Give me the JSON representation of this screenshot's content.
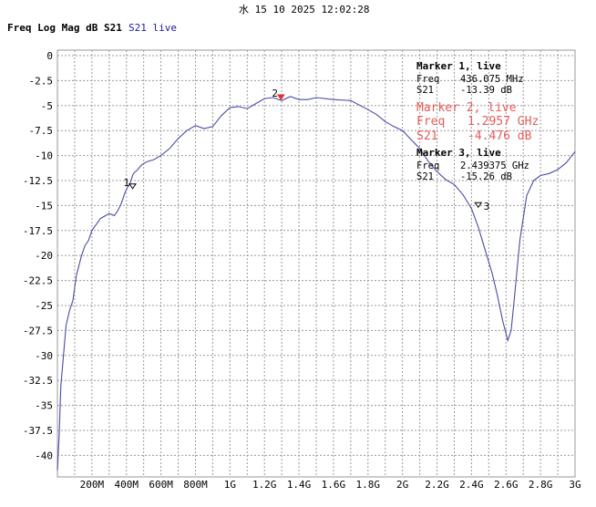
{
  "header": {
    "datetime": "水 15 10 2025 12:02:28",
    "title": "Freq Log Mag dB S21",
    "trace_label": "S21 live"
  },
  "colors": {
    "trace": "#4a4aa8",
    "marker_active": "#e03030",
    "marker_text_active": "#e85a5a",
    "grid": "#9a9a9a"
  },
  "chart_data": {
    "type": "line",
    "title": "Freq Log Mag dB S21",
    "xlabel": "",
    "ylabel": "",
    "xlim": [
      0,
      3.0
    ],
    "ylim": [
      -42,
      1
    ],
    "x_unit": "GHz",
    "grid": true,
    "y_ticks": [
      0,
      -2.5,
      -5,
      -7.5,
      -10,
      -12.5,
      -15,
      -17.5,
      -20,
      -22.5,
      -25,
      -27.5,
      -30,
      -32.5,
      -35,
      -37.5,
      -40
    ],
    "y_tick_labels": [
      "0",
      "-2.5",
      "-5",
      "-7.5",
      "-10",
      "-12.5",
      "-15",
      "-17.5",
      "-20",
      "-22.5",
      "-25",
      "-27.5",
      "-30",
      "-32.5",
      "-35",
      "-37.5",
      "-40"
    ],
    "x_ticks": [
      0.2,
      0.4,
      0.6,
      0.8,
      1.0,
      1.2,
      1.4,
      1.6,
      1.8,
      2.0,
      2.2,
      2.4,
      2.6,
      2.8,
      3.0
    ],
    "x_tick_labels": [
      "200M",
      "400M",
      "600M",
      "800M",
      "1G",
      "1.2G",
      "1.4G",
      "1.6G",
      "1.8G",
      "2G",
      "2.2G",
      "2.4G",
      "2.6G",
      "2.8G",
      "3G"
    ],
    "series": [
      {
        "name": "S21 live",
        "x": [
          0.0,
          0.01,
          0.02,
          0.03,
          0.05,
          0.07,
          0.09,
          0.11,
          0.14,
          0.16,
          0.18,
          0.2,
          0.22,
          0.25,
          0.28,
          0.3,
          0.33,
          0.35,
          0.37,
          0.39,
          0.4,
          0.42,
          0.44,
          0.46,
          0.49,
          0.52,
          0.56,
          0.6,
          0.65,
          0.7,
          0.75,
          0.8,
          0.85,
          0.9,
          0.95,
          1.0,
          1.05,
          1.1,
          1.15,
          1.2,
          1.25,
          1.3,
          1.35,
          1.4,
          1.45,
          1.5,
          1.6,
          1.7,
          1.8,
          1.85,
          1.9,
          1.95,
          2.0,
          2.05,
          2.1,
          2.15,
          2.2,
          2.25,
          2.3,
          2.35,
          2.4,
          2.44,
          2.48,
          2.52,
          2.55,
          2.58,
          2.61,
          2.63,
          2.65,
          2.68,
          2.72,
          2.76,
          2.8,
          2.85,
          2.9,
          2.95,
          3.0
        ],
        "values": [
          -41.5,
          -38.0,
          -33.0,
          -31.0,
          -27.0,
          -25.5,
          -24.5,
          -22.0,
          -20.0,
          -19.0,
          -18.5,
          -17.5,
          -17.0,
          -16.3,
          -16.0,
          -15.8,
          -16.0,
          -15.5,
          -14.8,
          -13.8,
          -13.4,
          -12.8,
          -11.8,
          -11.5,
          -10.9,
          -10.6,
          -10.4,
          -10.0,
          -9.3,
          -8.3,
          -7.5,
          -7.0,
          -7.3,
          -7.1,
          -6.0,
          -5.2,
          -5.1,
          -5.3,
          -4.8,
          -4.3,
          -4.2,
          -4.5,
          -4.1,
          -4.4,
          -4.4,
          -4.2,
          -4.4,
          -4.5,
          -5.4,
          -5.9,
          -6.6,
          -7.1,
          -7.5,
          -8.4,
          -9.3,
          -10.6,
          -11.6,
          -12.4,
          -12.9,
          -13.9,
          -15.3,
          -17.2,
          -19.5,
          -21.8,
          -24.0,
          -26.5,
          -28.5,
          -27.5,
          -24.0,
          -18.5,
          -14.0,
          -12.5,
          -12.0,
          -11.8,
          -11.4,
          -10.7,
          -9.6
        ]
      }
    ],
    "markers": [
      {
        "id": "1",
        "header": "Marker 1, live",
        "freq_label": "Freq",
        "freq": "436.075 MHz",
        "s21_label": "S21",
        "s21": "-13.39 dB",
        "x": 0.436,
        "y": -13.39,
        "active": false
      },
      {
        "id": "2",
        "header": "Marker 2, live",
        "freq_label": "Freq",
        "freq": "1.2957 GHz",
        "s21_label": "S21",
        "s21": "-4.476 dB",
        "x": 1.2957,
        "y": -4.476,
        "active": true
      },
      {
        "id": "3",
        "header": "Marker 3, live",
        "freq_label": "Freq",
        "freq": "2.439375 GHz",
        "s21_label": "S21",
        "s21": "-15.26 dB",
        "x": 2.439,
        "y": -15.26,
        "active": false
      }
    ]
  }
}
